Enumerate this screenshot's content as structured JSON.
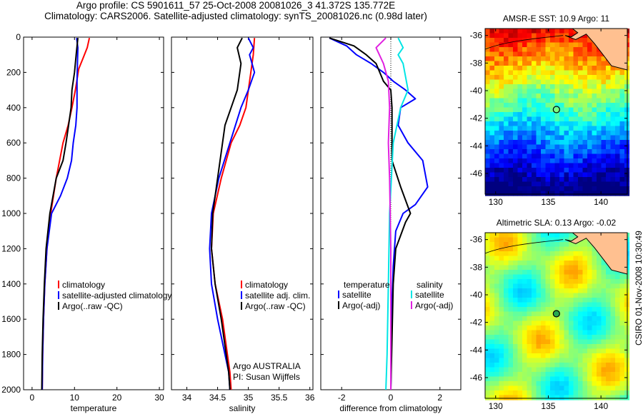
{
  "header": {
    "line1": "Argo profile: CS 5901611_57 25-Oct-2008 20081026_3 41.372S 135.772E",
    "line2": "Climatology: CARS2006. Satellite-adjusted climatology: synTS_20081026.nc (0.98d later)"
  },
  "stamp": "CSIRO 01-Nov-2008 10:30:49",
  "colors": {
    "climatology": "#ff0000",
    "satellite": "#0000ff",
    "argo": "#000000",
    "satellite_salinity": "#00e5e5",
    "argo_salinity": "#e020e0",
    "land": "#ffc090"
  },
  "chart_data": [
    {
      "type": "line",
      "name": "temperature-profile",
      "xlabel": "temperature",
      "ylabel": "",
      "xlim": [
        -2,
        31
      ],
      "ylim": [
        2000,
        0
      ],
      "xticks": [
        0,
        10,
        20,
        30
      ],
      "yticks": [
        0,
        200,
        400,
        600,
        800,
        1000,
        1200,
        1400,
        1600,
        1800,
        2000
      ],
      "legend": [
        "climatology",
        "satellite-adjusted climatology",
        "Argo(..raw -QC)"
      ],
      "series": [
        {
          "name": "climatology",
          "color": "#ff0000",
          "x": [
            13.5,
            13.0,
            12.0,
            11.0,
            10.2,
            9.4,
            8.5,
            7.3,
            5.7,
            4.4,
            3.5,
            3.0,
            2.7,
            2.5,
            2.4
          ],
          "y": [
            5,
            60,
            120,
            180,
            300,
            400,
            500,
            600,
            800,
            1000,
            1200,
            1400,
            1600,
            1800,
            2000
          ]
        },
        {
          "name": "satellite-adjusted climatology",
          "color": "#0000ff",
          "x": [
            10.5,
            10.8,
            10.7,
            10.6,
            10.6,
            10.3,
            9.7,
            9.3,
            8.3,
            6.7,
            4.6,
            3.5,
            3.0,
            2.7,
            2.5,
            2.4
          ],
          "y": [
            5,
            60,
            150,
            250,
            400,
            500,
            600,
            700,
            800,
            900,
            1000,
            1200,
            1400,
            1600,
            1800,
            2000
          ]
        },
        {
          "name": "Argo(..raw -QC)",
          "color": "#000000",
          "x": [
            10.8,
            10.4,
            10.0,
            9.4,
            9.2,
            8.6,
            8.0,
            7.3,
            5.7,
            4.2,
            3.3,
            2.9,
            2.6,
            2.4,
            2.3
          ],
          "y": [
            5,
            100,
            200,
            300,
            400,
            500,
            600,
            700,
            800,
            1000,
            1200,
            1400,
            1600,
            1800,
            2000
          ]
        }
      ]
    },
    {
      "type": "line",
      "name": "salinity-profile",
      "xlabel": "salinity",
      "ylabel": "",
      "xlim": [
        33.75,
        36.05
      ],
      "ylim": [
        2000,
        0
      ],
      "xticks": [
        34,
        34.5,
        35,
        35.5,
        36
      ],
      "legend": [
        "climatology",
        "satellite adj. clim.",
        "Argo(..raw -QC)"
      ],
      "annotations": [
        "Argo AUSTRALIA",
        "PI: Susan Wijffels"
      ],
      "series": [
        {
          "name": "climatology",
          "color": "#ff0000",
          "x": [
            35.1,
            35.08,
            35.04,
            34.96,
            34.86,
            34.72,
            34.56,
            34.43,
            34.4,
            34.46,
            34.58,
            34.66,
            34.7,
            34.72
          ],
          "y": [
            5,
            100,
            200,
            400,
            500,
            600,
            800,
            1000,
            1200,
            1400,
            1600,
            1800,
            1900,
            2000
          ]
        },
        {
          "name": "satellite adj. clim.",
          "color": "#0000ff",
          "x": [
            35.0,
            35.08,
            35.02,
            35.1,
            35.0,
            34.88,
            34.7,
            34.52,
            34.4,
            34.37,
            34.4,
            34.5,
            34.62,
            34.68,
            34.7
          ],
          "y": [
            5,
            60,
            100,
            200,
            300,
            400,
            600,
            800,
            1000,
            1200,
            1400,
            1600,
            1800,
            1900,
            2000
          ]
        },
        {
          "name": "Argo(..raw -QC)",
          "color": "#000000",
          "x": [
            34.9,
            34.82,
            34.88,
            34.86,
            34.82,
            34.72,
            34.62,
            34.5,
            34.42,
            34.4,
            34.46,
            34.56,
            34.64,
            34.68,
            34.7
          ],
          "y": [
            5,
            60,
            150,
            200,
            300,
            400,
            500,
            800,
            1000,
            1200,
            1400,
            1600,
            1800,
            1900,
            2000
          ]
        }
      ]
    },
    {
      "type": "line",
      "name": "difference-profile",
      "xlabel": "difference from climatology",
      "ylabel": "",
      "xlim": [
        -2.85,
        2.85
      ],
      "ylim": [
        2000,
        0
      ],
      "xticks": [
        -2,
        0,
        2
      ],
      "legend": [
        {
          "group": "temperature",
          "items": [
            "satellite",
            "Argo(-adj)"
          ]
        },
        {
          "group": "salinity",
          "items": [
            "satellite",
            "Argo(-adj)"
          ]
        }
      ],
      "series": [
        {
          "name": "temperature satellite",
          "color": "#0000ff",
          "x": [
            -2.5,
            -1.8,
            -1.4,
            -0.8,
            -0.3,
            0.1,
            0.6,
            1.0,
            0.4,
            0.3,
            0.7,
            1.3,
            1.5,
            1.0,
            0.5,
            0.2,
            0.1,
            0.05,
            0.02,
            0.0
          ],
          "y": [
            5,
            50,
            100,
            150,
            200,
            250,
            300,
            350,
            400,
            500,
            600,
            700,
            850,
            950,
            1000,
            1100,
            1300,
            1500,
            1800,
            2000
          ]
        },
        {
          "name": "temperature Argo(-adj)",
          "color": "#000000",
          "x": [
            -2.5,
            -1.5,
            -1.0,
            -0.6,
            -0.3,
            0.0,
            0.05,
            0.05,
            0.4,
            0.8,
            0.6,
            0.2,
            0.1,
            0.05,
            0.0
          ],
          "y": [
            5,
            50,
            100,
            150,
            250,
            300,
            400,
            700,
            850,
            1000,
            1050,
            1200,
            1400,
            1700,
            2000
          ]
        },
        {
          "name": "salinity satellite",
          "color": "#00e5e5",
          "x": [
            0.3,
            0.5,
            0.3,
            0.5,
            0.7,
            0.4,
            0.1,
            -0.05,
            -0.1,
            -0.15,
            -0.2
          ],
          "y": [
            5,
            60,
            100,
            150,
            300,
            400,
            600,
            1000,
            1400,
            1800,
            2000
          ]
        },
        {
          "name": "salinity Argo(-adj)",
          "color": "#e020e0",
          "x": [
            -0.2,
            -0.6,
            -0.3,
            -0.1,
            -0.05,
            -0.1,
            -0.05,
            0.0,
            0.0,
            0.0
          ],
          "y": [
            5,
            60,
            150,
            250,
            400,
            600,
            800,
            1200,
            1600,
            2000
          ]
        }
      ]
    },
    {
      "type": "heatmap",
      "name": "amsr-sst-map",
      "title": "AMSR-E SST: 10.9 Argo: 11",
      "xlim": [
        129,
        142.5
      ],
      "ylim": [
        -47.5,
        -35.5
      ],
      "xticks": [
        130,
        135,
        140
      ],
      "yticks": [
        -36,
        -38,
        -40,
        -42,
        -44,
        -46
      ],
      "marker": {
        "lon": 135.772,
        "lat": -41.372
      }
    },
    {
      "type": "heatmap",
      "name": "altimetric-sla-map",
      "title": "Altimetric SLA: 0.13 Argo: -0.02",
      "xlim": [
        129,
        142.5
      ],
      "ylim": [
        -47.5,
        -35.5
      ],
      "xticks": [
        130,
        135,
        140
      ],
      "yticks": [
        -36,
        -38,
        -40,
        -42,
        -44,
        -46
      ],
      "marker": {
        "lon": 135.772,
        "lat": -41.372
      }
    }
  ]
}
